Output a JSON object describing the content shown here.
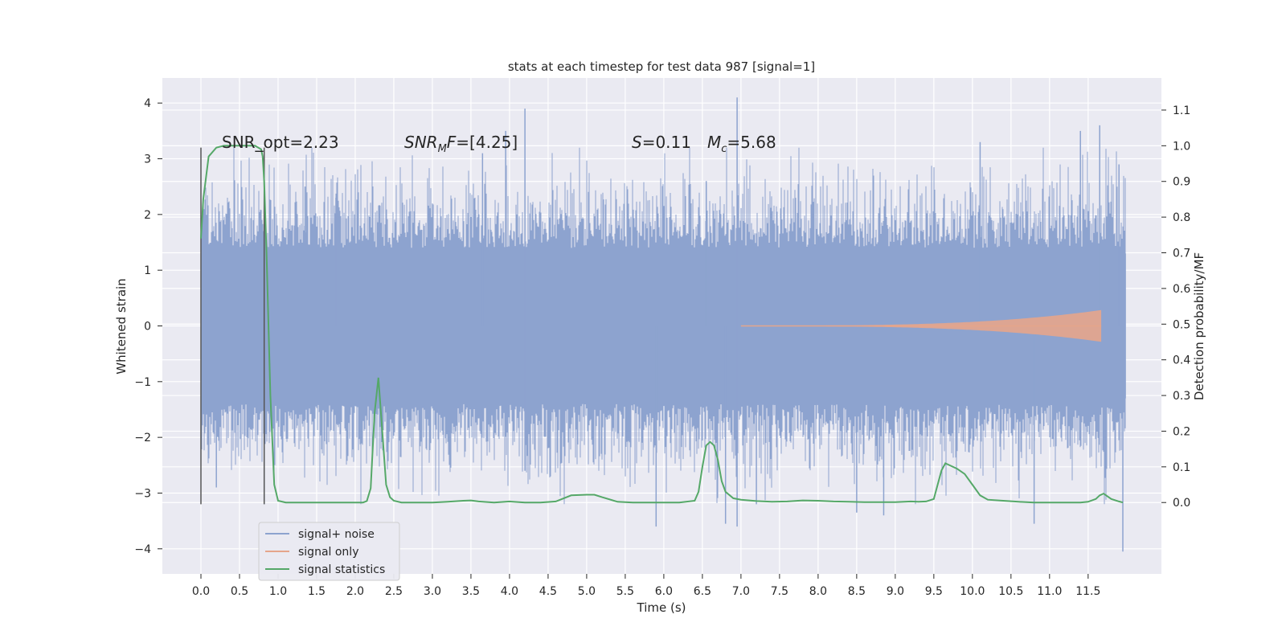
{
  "chart_data": {
    "type": "line",
    "title": "stats at each timestep for test data 987 [signal=1]",
    "xlabel": "Time (s)",
    "ylabel": "Whitened strain",
    "ylabel_right": "Detection probability/MF",
    "xlim": [
      -0.5,
      12.45
    ],
    "ylim": [
      -4.45,
      4.45
    ],
    "ylim_right": [
      -0.2,
      1.19
    ],
    "x_ticks": [
      "0.0",
      "0.5",
      "1.0",
      "1.5",
      "2.0",
      "2.5",
      "3.0",
      "3.5",
      "4.0",
      "4.5",
      "5.0",
      "5.5",
      "6.0",
      "6.5",
      "7.0",
      "7.5",
      "8.0",
      "8.5",
      "9.0",
      "9.5",
      "10.0",
      "10.5",
      "11.0",
      "11.5"
    ],
    "y_ticks": [
      "4",
      "3",
      "2",
      "1",
      "0",
      "−1",
      "−2",
      "−3",
      "−4"
    ],
    "y_ticks_right": [
      "1.1",
      "1.0",
      "0.9",
      "0.8",
      "0.7",
      "0.6",
      "0.5",
      "0.4",
      "0.3",
      "0.2",
      "0.1",
      "0.0"
    ],
    "grid": true,
    "legend_position": "lower-left",
    "annotations": {
      "snr_opt": "SNR_opt=2.23",
      "snr_mf_label": "SNR",
      "snr_mf_sub": "M",
      "snr_mf_rest": "F=[4.25]",
      "s_label": "S",
      "s_value": "=0.11",
      "mc_label": "M",
      "mc_sub": "c",
      "mc_value": "=5.68"
    },
    "vertical_markers": [
      {
        "x": 0.0,
        "y_range": [
          -3.2,
          3.2
        ]
      },
      {
        "x": 0.82,
        "y_range": [
          -3.2,
          3.2
        ]
      }
    ],
    "series": [
      {
        "name": "signal+ noise",
        "color": "#8da3cf",
        "kind": "noise",
        "x_range": [
          0.0,
          11.99
        ],
        "core_amplitude": 1.3,
        "extreme_points": [
          {
            "x": 0.2,
            "y": -2.9
          },
          {
            "x": 1.35,
            "y": 2.5
          },
          {
            "x": 1.75,
            "y": 2.3
          },
          {
            "x": 3.65,
            "y": 3.1
          },
          {
            "x": 3.95,
            "y": 3.5
          },
          {
            "x": 4.2,
            "y": 3.9
          },
          {
            "x": 4.2,
            "y": -2.6
          },
          {
            "x": 5.9,
            "y": -3.6
          },
          {
            "x": 6.55,
            "y": 2.6
          },
          {
            "x": 6.95,
            "y": 4.1
          },
          {
            "x": 6.95,
            "y": -3.6
          },
          {
            "x": 6.8,
            "y": -3.55
          },
          {
            "x": 7.2,
            "y": -3.2
          },
          {
            "x": 8.5,
            "y": -3.35
          },
          {
            "x": 8.85,
            "y": -3.4
          },
          {
            "x": 10.1,
            "y": 3.3
          },
          {
            "x": 10.8,
            "y": -3.55
          },
          {
            "x": 11.4,
            "y": 3.5
          },
          {
            "x": 11.65,
            "y": 3.6
          },
          {
            "x": 11.95,
            "y": -4.05
          },
          {
            "x": 11.9,
            "y": 2.9
          }
        ]
      },
      {
        "name": "signal only",
        "color": "#e5a58b",
        "kind": "chirp",
        "x_start": 7.0,
        "x_end": 11.67,
        "max_amplitude": 0.28
      },
      {
        "name": "signal statistics",
        "color": "#55a868",
        "axis": "right",
        "x": [
          0.0,
          0.03,
          0.1,
          0.2,
          0.3,
          0.5,
          0.7,
          0.78,
          0.8,
          0.82,
          0.85,
          0.9,
          0.95,
          1.0,
          1.1,
          1.3,
          1.5,
          1.7,
          1.9,
          2.1,
          2.15,
          2.2,
          2.25,
          2.3,
          2.35,
          2.4,
          2.45,
          2.5,
          2.6,
          2.8,
          3.0,
          3.2,
          3.4,
          3.5,
          3.6,
          3.8,
          4.0,
          4.2,
          4.4,
          4.6,
          4.8,
          5.0,
          5.1,
          5.2,
          5.4,
          5.6,
          5.8,
          6.0,
          6.2,
          6.4,
          6.45,
          6.5,
          6.55,
          6.6,
          6.65,
          6.7,
          6.75,
          6.8,
          6.9,
          7.0,
          7.2,
          7.4,
          7.6,
          7.8,
          8.0,
          8.2,
          8.4,
          8.6,
          8.8,
          9.0,
          9.2,
          9.3,
          9.4,
          9.5,
          9.55,
          9.6,
          9.65,
          9.7,
          9.8,
          9.9,
          10.0,
          10.1,
          10.2,
          10.4,
          10.6,
          10.8,
          11.0,
          11.2,
          11.4,
          11.5,
          11.6,
          11.65,
          11.7,
          11.8,
          11.9,
          11.95
        ],
        "values": [
          0.74,
          0.85,
          0.97,
          0.995,
          1.0,
          1.0,
          1.0,
          0.99,
          0.97,
          0.9,
          0.7,
          0.3,
          0.05,
          0.005,
          0.0,
          0.0,
          0.0,
          0.0,
          0.0,
          0.0,
          0.004,
          0.04,
          0.25,
          0.35,
          0.2,
          0.05,
          0.015,
          0.005,
          0.0,
          0.0,
          0.0,
          0.002,
          0.005,
          0.006,
          0.003,
          0.0,
          0.003,
          0.0,
          0.0,
          0.003,
          0.02,
          0.022,
          0.022,
          0.015,
          0.002,
          0.0,
          0.0,
          0.0,
          0.0,
          0.005,
          0.03,
          0.1,
          0.16,
          0.17,
          0.16,
          0.12,
          0.06,
          0.03,
          0.012,
          0.008,
          0.004,
          0.002,
          0.003,
          0.006,
          0.005,
          0.003,
          0.002,
          0.001,
          0.001,
          0.001,
          0.003,
          0.002,
          0.003,
          0.01,
          0.05,
          0.09,
          0.11,
          0.105,
          0.095,
          0.08,
          0.05,
          0.02,
          0.008,
          0.005,
          0.002,
          0.0,
          0.0,
          0.0,
          0.0,
          0.002,
          0.01,
          0.02,
          0.025,
          0.01,
          0.003,
          0.0
        ]
      }
    ]
  }
}
